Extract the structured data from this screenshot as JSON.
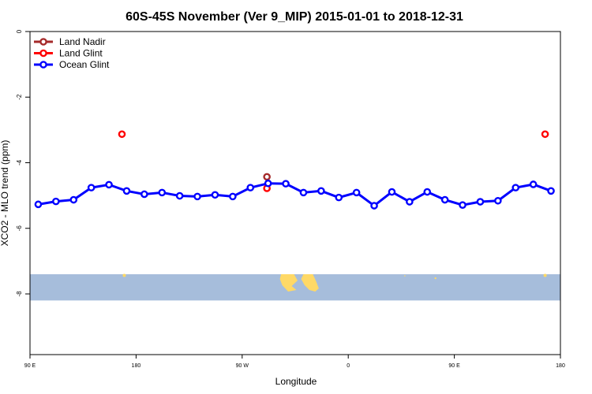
{
  "chart_data": {
    "type": "line",
    "title": "60S-45S November (Ver 9_MIP)   2015-01-01 to 2018-12-31",
    "xlabel": "Longitude",
    "ylabel": "XCO2 - MLO trend (ppm)",
    "x_tick_labels": [
      "90 E",
      "180",
      "90 W",
      "0",
      "90 E",
      "180"
    ],
    "x_ticks": [
      90,
      180,
      270,
      360,
      450,
      540
    ],
    "xlim": [
      90,
      540
    ],
    "y_ticks": [
      0,
      -2,
      -4,
      -6,
      -8
    ],
    "ylim": [
      -9.85,
      0
    ],
    "grid": false,
    "legend_position": "top-left",
    "series": [
      {
        "name": "Land Nadir",
        "color": "#a52a2a",
        "points": [
          [
            291,
            -4.43
          ]
        ]
      },
      {
        "name": "Land Glint",
        "color": "#ff0000",
        "points": [
          [
            168,
            -3.13
          ],
          [
            291,
            -4.78
          ],
          [
            527,
            -3.13
          ]
        ]
      },
      {
        "name": "Ocean Glint",
        "color": "#0000ff",
        "points": [
          [
            97,
            -5.27
          ],
          [
            112,
            -5.18
          ],
          [
            127,
            -5.13
          ],
          [
            142,
            -4.76
          ],
          [
            157,
            -4.67
          ],
          [
            172,
            -4.86
          ],
          [
            187,
            -4.96
          ],
          [
            202,
            -4.91
          ],
          [
            217,
            -5.01
          ],
          [
            232,
            -5.03
          ],
          [
            247,
            -4.98
          ],
          [
            262,
            -5.03
          ],
          [
            277,
            -4.76
          ],
          [
            292,
            -4.63
          ],
          [
            307,
            -4.64
          ],
          [
            322,
            -4.91
          ],
          [
            337,
            -4.86
          ],
          [
            352,
            -5.06
          ],
          [
            367,
            -4.91
          ],
          [
            382,
            -5.31
          ],
          [
            397,
            -4.89
          ],
          [
            412,
            -5.19
          ],
          [
            427,
            -4.89
          ],
          [
            442,
            -5.13
          ],
          [
            457,
            -5.29
          ],
          [
            472,
            -5.19
          ],
          [
            487,
            -5.16
          ],
          [
            502,
            -4.76
          ],
          [
            517,
            -4.66
          ],
          [
            532,
            -4.86
          ]
        ]
      }
    ],
    "map_band": {
      "y_range": [
        -7.4,
        -8.2
      ],
      "ocean_color": "#a6bddb",
      "land_color": "#ffd966"
    }
  }
}
